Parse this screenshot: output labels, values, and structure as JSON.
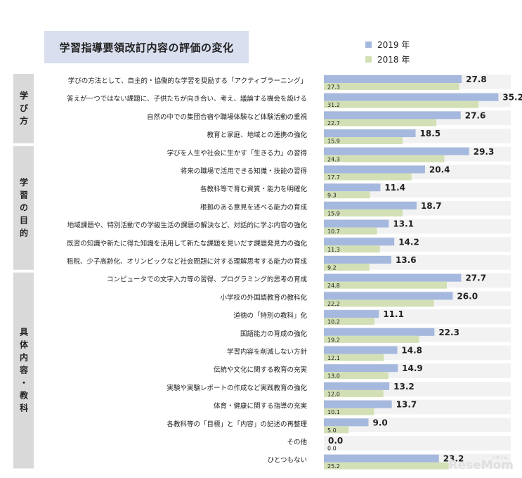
{
  "chart_data": {
    "type": "bar",
    "orientation": "horizontal",
    "title": "学習指導要領改訂内容の評価の変化",
    "xlim": [
      0,
      36
    ],
    "legend_position": "top-right",
    "series": [
      {
        "name": "2019 年",
        "color": "#a5b8de",
        "values": [
          27.8,
          35.2,
          27.6,
          18.5,
          29.3,
          20.4,
          11.4,
          18.7,
          13.1,
          14.2,
          13.6,
          27.7,
          26.0,
          11.1,
          22.3,
          14.8,
          14.9,
          13.2,
          13.7,
          9.0,
          0.0,
          23.2
        ],
        "labels": [
          "27.8",
          "35.2",
          "27.6",
          "18.5",
          "29.3",
          "20.4",
          "11.4",
          "18.7",
          "13.1",
          "14.2",
          "13.6",
          "27.7",
          "26.0",
          "11.1",
          "22.3",
          "14.8",
          "14.9",
          "13.2",
          "13.7",
          "9.0",
          "0.0",
          "23.2"
        ]
      },
      {
        "name": "2018 年",
        "color": "#d3e0b5",
        "values": [
          27.3,
          31.2,
          22.7,
          15.9,
          24.3,
          17.7,
          9.3,
          15.9,
          10.7,
          11.3,
          9.2,
          24.8,
          22.2,
          10.2,
          19.2,
          12.1,
          13.0,
          12.0,
          10.1,
          5.0,
          0.0,
          25.2
        ],
        "labels": [
          "27.3",
          "31.2",
          "22.7",
          "15.9",
          "24.3",
          "17.7",
          "9.3",
          "15.9",
          "10.7",
          "11.3",
          "9.2",
          "24.8",
          "22.2",
          "10.2",
          "19.2",
          "12.1",
          "13.0",
          "12.0",
          "10.1",
          "5.0",
          "0.0",
          "25.2"
        ]
      }
    ],
    "categories": [
      "学びの方法として、自主的・協働的な学習を奨励する「アクティブラーニング」",
      "答えが一つではない課題に、子供たちが向き合い、考え、議論する機会を設ける",
      "自然の中での集団合宿や職場体験など体験活動の重視",
      "教育と家庭、地域との連携の強化",
      "学びを人生や社会に生かす「生きる力」の習得",
      "将来の職場で活用できる知識・技能の習得",
      "各教科等で育む資質・能力を明確化",
      "根拠のある意見を述べる能力の育成",
      "地域課題や、特別活動での学級生活の課題の解決など、対話的に学ぶ内容の強化",
      "既習の知識や新たに得た知識を活用して新たな課題を見いだす課題発見力の強化",
      "租税、少子高齢化、オリンピックなど社会問題に対する理解思考する能力の育成",
      "コンピュータでの文字入力等の習得、プログラミング的思考の育成",
      "小学校の外国語教育の教科化",
      "道徳の「特別の教科」化",
      "国語能力の育成の強化",
      "学習内容を削減しない方針",
      "伝統や文化に関する教育の充実",
      "実験や実験レポートの作成など実践教育の強化",
      "体育・健康に関する指導の充実",
      "各教科等の「目標」と「内容」の記述の再整理",
      "その他",
      "ひとつもない"
    ],
    "groups": [
      {
        "label": "学び方",
        "start": 0,
        "end": 3
      },
      {
        "label": "学習の目的",
        "start": 4,
        "end": 10
      },
      {
        "label": "具体内容・教科",
        "start": 11,
        "end": 21
      }
    ]
  },
  "brand": {
    "name": "ReseMom",
    "sub": "リセマム"
  }
}
